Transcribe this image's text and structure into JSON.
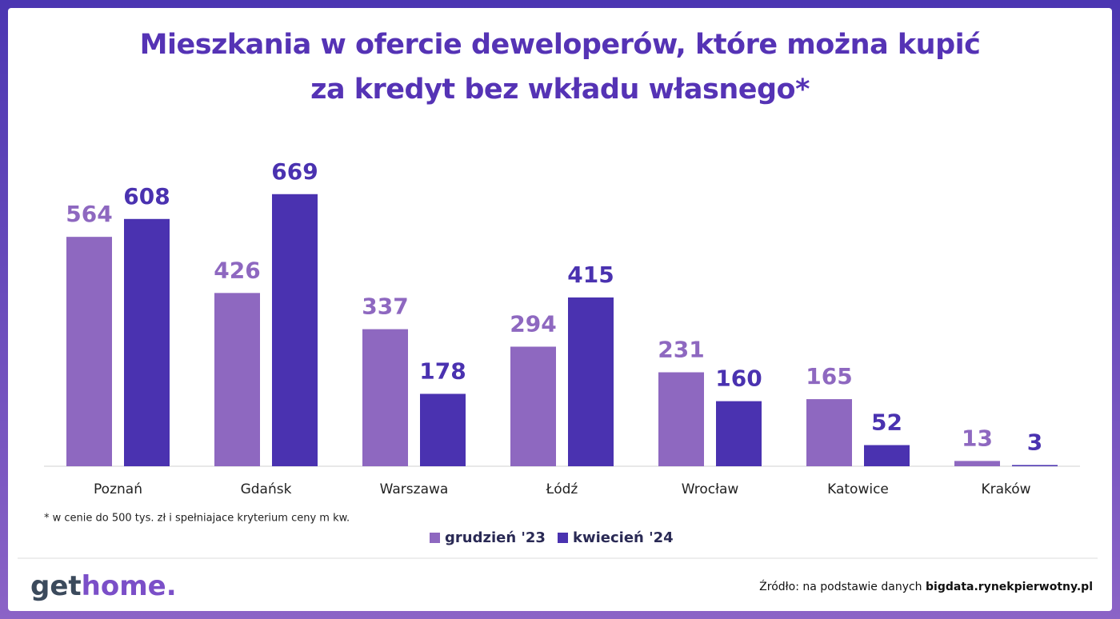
{
  "chart_data": {
    "type": "bar",
    "title": "Mieszkania w ofercie deweloperów, które można kupić za kredyt bez wkładu własnego*",
    "categories": [
      "Poznań",
      "Gdańsk",
      "Warszawa",
      "Łódź",
      "Wrocław",
      "Katowice",
      "Kraków"
    ],
    "series": [
      {
        "name": "grudzień '23",
        "color": "#8e68c0",
        "values": [
          564,
          426,
          337,
          294,
          231,
          165,
          13
        ]
      },
      {
        "name": "kwiecień '24",
        "color": "#4a32b0",
        "values": [
          608,
          669,
          178,
          415,
          160,
          52,
          3
        ]
      }
    ],
    "ylim": [
      0,
      700
    ],
    "note": "* w cenie do 500 tys. zł i spełniajace kryterium ceny m kw."
  },
  "logo": {
    "part1": "get",
    "part2": "home."
  },
  "source": {
    "prefix": "Źródło: na podstawie danych",
    "link": "bigdata.rynekpierwotny.pl"
  }
}
